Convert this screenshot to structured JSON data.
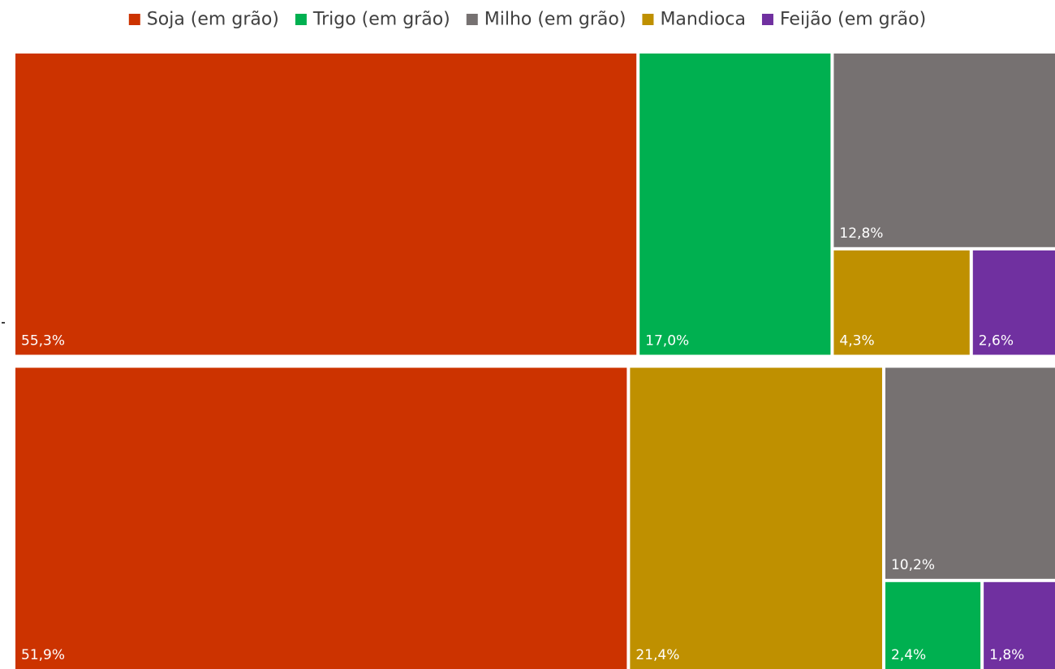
{
  "chart_data": {
    "type": "treemap",
    "legend": {
      "position": "top",
      "entries": [
        {
          "name": "Soja (em grão)",
          "color": "#CC3300"
        },
        {
          "name": "Trigo (em grão)",
          "color": "#00B050"
        },
        {
          "name": "Milho (em grão)",
          "color": "#767171"
        },
        {
          "name": "Mandioca",
          "color": "#BF9000"
        },
        {
          "name": "Feijão (em grão)",
          "color": "#7030A0"
        }
      ]
    },
    "groups": [
      {
        "items": [
          {
            "category": "Soja (em grão)",
            "value": 55.3,
            "label": "55,3%"
          },
          {
            "category": "Trigo (em grão)",
            "value": 17.0,
            "label": "17,0%"
          },
          {
            "category": "Milho (em grão)",
            "value": 12.8,
            "label": "12,8%"
          },
          {
            "category": "Mandioca",
            "value": 4.3,
            "label": "4,3%"
          },
          {
            "category": "Feijão (em grão)",
            "value": 2.6,
            "label": "2,6%"
          }
        ]
      },
      {
        "items": [
          {
            "category": "Soja (em grão)",
            "value": 51.9,
            "label": "51,9%"
          },
          {
            "category": "Mandioca",
            "value": 21.4,
            "label": "21,4%"
          },
          {
            "category": "Milho (em grão)",
            "value": 10.2,
            "label": "10,2%"
          },
          {
            "category": "Trigo (em grão)",
            "value": 2.4,
            "label": "2,4%"
          },
          {
            "category": "Feijão (em grão)",
            "value": 1.8,
            "label": "1,8%"
          }
        ]
      }
    ]
  }
}
